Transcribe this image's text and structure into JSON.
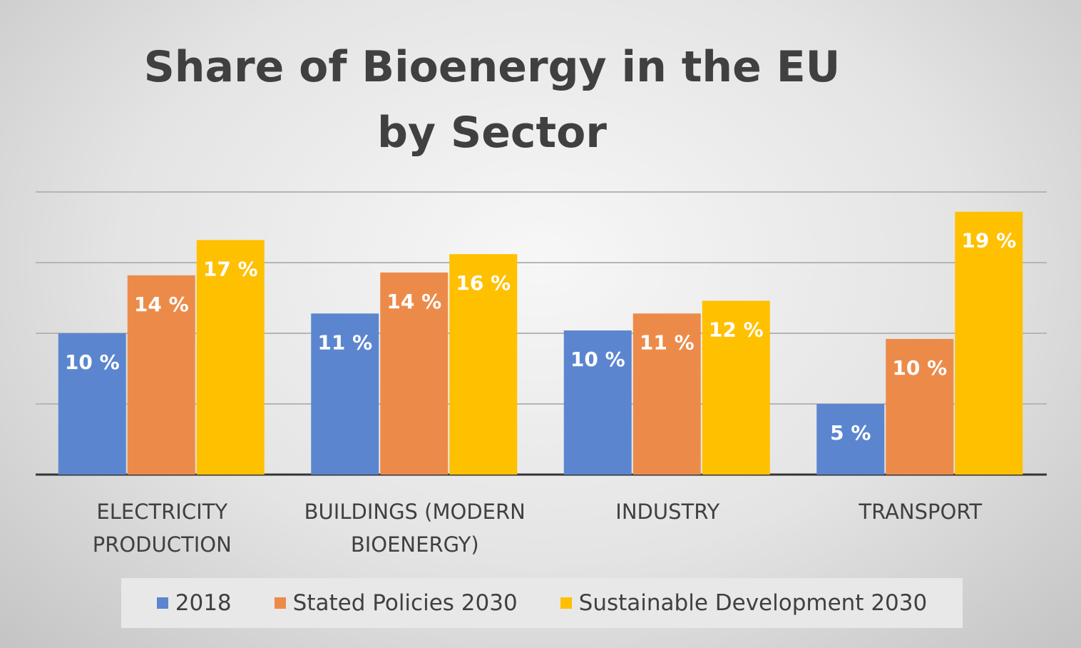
{
  "chart_data": {
    "type": "bar",
    "title": "Share of Bioenergy in the EU by Sector",
    "categories": [
      "ELECTRICITY PRODUCTION",
      "BUILDINGS (MODERN BIOENERGY)",
      "INDUSTRY",
      "TRANSPORT"
    ],
    "series": [
      {
        "name": "2018",
        "color": "#5b86cf",
        "values": [
          10,
          11.4,
          10.2,
          5
        ],
        "value_labels": [
          "10 %",
          "11 %",
          "10 %",
          "5 %"
        ]
      },
      {
        "name": "Stated Policies 2030",
        "color": "#ec8b49",
        "values": [
          14.1,
          14.3,
          11.4,
          9.6
        ],
        "value_labels": [
          "14 %",
          "14 %",
          "11 %",
          "10 %"
        ]
      },
      {
        "name": "Sustainable Development 2030",
        "color": "#ffc000",
        "values": [
          16.6,
          15.6,
          12.3,
          18.6
        ],
        "value_labels": [
          "17 %",
          "16 %",
          "12 %",
          "19 %"
        ]
      }
    ],
    "ylim": [
      0,
      20
    ],
    "yticks": [
      0,
      5,
      10,
      15,
      20
    ],
    "grid": true
  }
}
